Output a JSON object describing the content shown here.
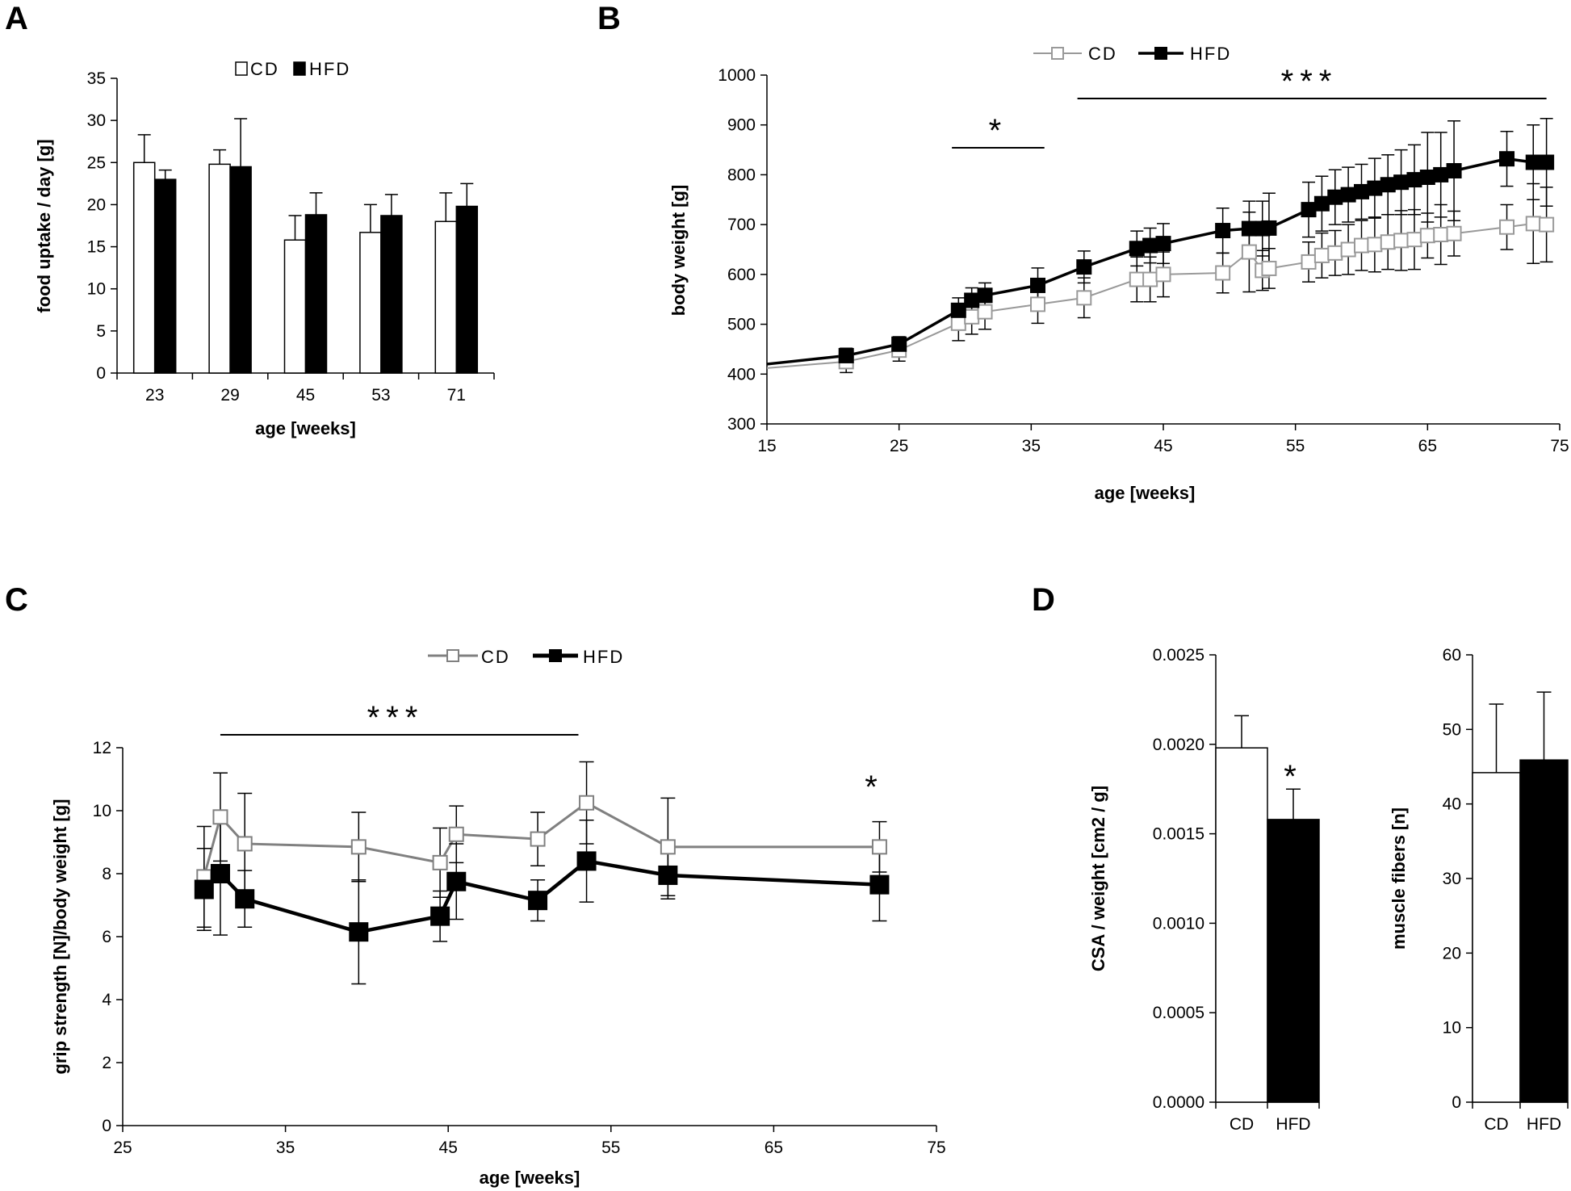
{
  "chart_data": [
    {
      "panel": "A",
      "type": "bar",
      "title": "",
      "xlabel": "age [weeks]",
      "ylabel": "food uptake / day [g]",
      "ylim": [
        0,
        35
      ],
      "yticks": [
        0,
        5,
        10,
        15,
        20,
        25,
        30,
        35
      ],
      "categories": [
        "23",
        "29",
        "45",
        "53",
        "71"
      ],
      "series": [
        {
          "name": "CD",
          "color": "#ffffff",
          "values": [
            25.0,
            24.8,
            15.8,
            16.7,
            18.0
          ],
          "errors": [
            3.3,
            1.7,
            2.9,
            3.3,
            3.4
          ]
        },
        {
          "name": "HFD",
          "color": "#000000",
          "values": [
            23.0,
            24.5,
            18.8,
            18.7,
            19.8
          ],
          "errors": [
            1.1,
            5.7,
            2.6,
            2.5,
            2.7
          ]
        }
      ],
      "legend": {
        "position": "top-center"
      }
    },
    {
      "panel": "B",
      "type": "line",
      "title": "",
      "xlabel": "age [weeks]",
      "ylabel": "body weight [g]",
      "xlim": [
        15,
        75
      ],
      "ylim": [
        300,
        1000
      ],
      "xticks": [
        15,
        25,
        35,
        45,
        55,
        65,
        75
      ],
      "yticks": [
        300,
        400,
        500,
        600,
        700,
        800,
        900,
        1000
      ],
      "series": [
        {
          "name": "CD",
          "color": "#999999",
          "marker": "open-square",
          "x": [
            15,
            21,
            25,
            29.5,
            30.5,
            31.5,
            35.5,
            39,
            43,
            44,
            45,
            49.5,
            51.5,
            52.5,
            53,
            56,
            57,
            58,
            59,
            60,
            61,
            62,
            63,
            64,
            65,
            66,
            67,
            71,
            73,
            74
          ],
          "y": [
            412,
            425,
            448,
            502,
            515,
            525,
            540,
            553,
            590,
            590,
            600,
            603,
            645,
            608,
            612,
            625,
            638,
            643,
            650,
            658,
            660,
            665,
            668,
            670,
            678,
            680,
            682,
            695,
            702,
            700
          ],
          "errors": [
            0,
            22,
            22,
            35,
            35,
            35,
            38,
            40,
            45,
            45,
            45,
            40,
            80,
            40,
            40,
            40,
            45,
            45,
            50,
            50,
            55,
            55,
            60,
            60,
            45,
            60,
            45,
            45,
            80,
            75
          ]
        },
        {
          "name": "HFD",
          "color": "#000000",
          "marker": "filled-square",
          "x": [
            15,
            21,
            25,
            29.5,
            30.5,
            31.5,
            35.5,
            39,
            43,
            44,
            45,
            49.5,
            51.5,
            52.5,
            53,
            56,
            57,
            58,
            59,
            60,
            61,
            62,
            63,
            64,
            65,
            66,
            67,
            71,
            73,
            74
          ],
          "y": [
            420,
            437,
            460,
            528,
            548,
            558,
            578,
            615,
            652,
            658,
            662,
            688,
            692,
            692,
            693,
            730,
            742,
            755,
            760,
            766,
            773,
            780,
            785,
            790,
            795,
            800,
            808,
            832,
            825,
            825
          ],
          "errors": [
            0,
            15,
            15,
            25,
            25,
            25,
            35,
            32,
            35,
            35,
            40,
            45,
            55,
            55,
            70,
            55,
            55,
            55,
            55,
            55,
            60,
            60,
            65,
            70,
            90,
            85,
            100,
            55,
            75,
            88
          ]
        }
      ],
      "annotations": [
        {
          "text": "*",
          "x_from": 29,
          "x_to": 36
        },
        {
          "text": "***",
          "x_from": 38.5,
          "x_to": 74
        }
      ],
      "legend": {
        "position": "top-left"
      }
    },
    {
      "panel": "C",
      "type": "line",
      "title": "",
      "xlabel": "age [weeks]",
      "ylabel": "grip strength [N]/body weight [g]",
      "xlim": [
        25,
        75
      ],
      "ylim": [
        0,
        12
      ],
      "xticks": [
        25,
        35,
        45,
        55,
        65,
        75
      ],
      "yticks": [
        0,
        2,
        4,
        6,
        8,
        10,
        12
      ],
      "series": [
        {
          "name": "CD",
          "color": "#808080",
          "marker": "open-square",
          "x": [
            30,
            31,
            32.5,
            39.5,
            44.5,
            45.5,
            50.5,
            53.5,
            58.5,
            71.5
          ],
          "y": [
            7.9,
            9.8,
            8.95,
            8.85,
            8.35,
            9.25,
            9.1,
            10.25,
            8.85,
            8.85
          ],
          "errors": [
            1.6,
            1.4,
            1.6,
            1.1,
            1.1,
            0.9,
            0.85,
            1.3,
            1.55,
            0.8
          ]
        },
        {
          "name": "HFD",
          "color": "#000000",
          "marker": "filled-square",
          "x": [
            30,
            31,
            32.5,
            39.5,
            44.5,
            45.5,
            50.5,
            53.5,
            58.5,
            71.5
          ],
          "y": [
            7.5,
            8.0,
            7.2,
            6.15,
            6.65,
            7.75,
            7.15,
            8.4,
            7.95,
            7.65
          ],
          "errors": [
            1.3,
            1.95,
            0.9,
            1.65,
            0.8,
            1.2,
            0.65,
            1.3,
            0.75,
            1.15
          ]
        }
      ],
      "annotations": [
        {
          "text": "***",
          "x_from": 31,
          "x_to": 53
        },
        {
          "text": "*",
          "x": 71.5
        }
      ],
      "legend": {
        "position": "top-center"
      }
    },
    {
      "panel": "D",
      "type": "bar",
      "title": "",
      "xlabel": "",
      "ylabel": "CSA / weight [cm2 / g]",
      "ylim": [
        0,
        0.0025
      ],
      "yticks": [
        "0.0000",
        "0.0005",
        "0.0010",
        "0.0015",
        "0.0020",
        "0.0025"
      ],
      "categories": [
        "CD",
        "HFD"
      ],
      "values": [
        0.00198,
        0.00158
      ],
      "errors": [
        0.00018,
        0.00017
      ],
      "colors": [
        "#ffffff",
        "#000000"
      ],
      "annotations": [
        {
          "text": "*",
          "category": "HFD"
        }
      ]
    },
    {
      "panel": "D",
      "type": "bar",
      "title": "",
      "xlabel": "",
      "ylabel": "muscle fibers [n]",
      "ylim": [
        0,
        60
      ],
      "yticks": [
        0,
        10,
        20,
        30,
        40,
        50,
        60
      ],
      "categories": [
        "CD",
        "HFD"
      ],
      "values": [
        44.2,
        45.9
      ],
      "errors": [
        9.2,
        9.1
      ],
      "colors": [
        "#ffffff",
        "#000000"
      ]
    }
  ]
}
